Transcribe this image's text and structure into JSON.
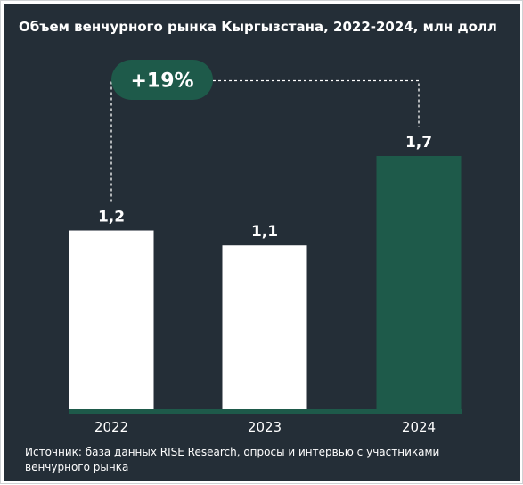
{
  "title": "Объем венчурного рынка Кыргызстана, 2022-2024, млн долл",
  "source": "Источник: база данных RISE Research, опросы и интервью с участниками венчурного рынка",
  "growth_label": "+19%",
  "colors": {
    "background": "#242e37",
    "bar_default": "#ffffff",
    "bar_highlight": "#1e5a4a",
    "baseline": "#1e5a4a",
    "badge": "#1e5a4a",
    "text": "#ffffff",
    "connector": "#ffffff"
  },
  "chart_data": {
    "type": "bar",
    "title": "Объем венчурного рынка Кыргызстана, 2022-2024, млн долл",
    "categories": [
      "2022",
      "2023",
      "2024"
    ],
    "values": [
      1.2,
      1.1,
      1.7
    ],
    "value_labels": [
      "1,2",
      "1,1",
      "1,7"
    ],
    "highlight_index": 2,
    "xlabel": "",
    "ylabel": "",
    "ylim": [
      0,
      1.7
    ],
    "grid": false,
    "legend": "none",
    "annotations": [
      {
        "text": "+19%",
        "from_category": "2022",
        "to_category": "2024"
      }
    ]
  }
}
